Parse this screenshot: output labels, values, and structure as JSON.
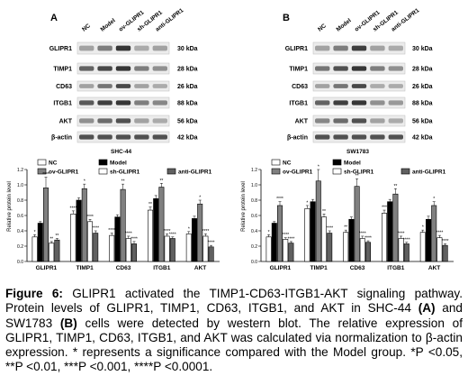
{
  "panels": [
    {
      "letter": "A",
      "cell_line": "SHC-44",
      "lanes": [
        "NC",
        "Model",
        "ov-GLIPR1",
        "sh-GLIPR1",
        "anti-GLIPR1"
      ],
      "proteins": [
        "GLIPR1",
        "TIMP1",
        "CD63",
        "ITGB1",
        "AKT",
        "β-actin"
      ],
      "sizes": [
        "30 kDa",
        "28 kDa",
        "26 kDa",
        "88 kDa",
        "56 kDa",
        "42 kDa"
      ],
      "band_intensity": [
        [
          0.35,
          0.55,
          0.95,
          0.3,
          0.35
        ],
        [
          0.7,
          0.85,
          0.95,
          0.55,
          0.45
        ],
        [
          0.35,
          0.6,
          0.85,
          0.35,
          0.3
        ],
        [
          0.75,
          0.9,
          0.95,
          0.55,
          0.5
        ],
        [
          0.45,
          0.65,
          0.8,
          0.35,
          0.3
        ],
        [
          0.8,
          0.8,
          0.8,
          0.8,
          0.8
        ]
      ]
    },
    {
      "letter": "B",
      "cell_line": "SW1783",
      "lanes": [
        "NC",
        "Model",
        "ov-GLIPR1",
        "sh-GLIPR1",
        "anti-GLIPR1"
      ],
      "proteins": [
        "GLIPR1",
        "TIMP1",
        "CD63",
        "ITGB1",
        "AKT",
        "β-actin"
      ],
      "sizes": [
        "30 kDa",
        "28 kDa",
        "26 kDa",
        "88 kDa",
        "56 kDa",
        "42 kDa"
      ],
      "band_intensity": [
        [
          0.35,
          0.55,
          0.9,
          0.35,
          0.3
        ],
        [
          0.6,
          0.8,
          0.95,
          0.55,
          0.45
        ],
        [
          0.35,
          0.6,
          0.85,
          0.3,
          0.3
        ],
        [
          0.7,
          0.9,
          0.95,
          0.45,
          0.4
        ],
        [
          0.5,
          0.65,
          0.8,
          0.35,
          0.3
        ],
        [
          0.8,
          0.8,
          0.8,
          0.8,
          0.8
        ]
      ]
    }
  ],
  "chart_data": [
    {
      "type": "bar",
      "panel": "SHC-44",
      "categories": [
        "GLIPR1",
        "TIMP1",
        "CD63",
        "ITGB1",
        "AKT"
      ],
      "ylabel": "Relative protein level",
      "ylim": [
        0,
        1.2
      ],
      "yticks": [
        0.0,
        0.2,
        0.4,
        0.6,
        0.8,
        1.0,
        1.2
      ],
      "legend": "top",
      "series": [
        {
          "name": "NC",
          "values": [
            0.32,
            0.62,
            0.34,
            0.67,
            0.36
          ],
          "errors": [
            0.03,
            0.04,
            0.03,
            0.04,
            0.03
          ],
          "stars": [
            "*",
            "****",
            "****",
            "**",
            "*"
          ]
        },
        {
          "name": "Model",
          "values": [
            0.5,
            0.8,
            0.58,
            0.82,
            0.56
          ],
          "errors": [
            0.02,
            0.03,
            0.03,
            0.04,
            0.03
          ],
          "stars": [
            "",
            "",
            "",
            "",
            ""
          ]
        },
        {
          "name": "ov-GLIPR1",
          "values": [
            0.96,
            0.95,
            0.94,
            0.97,
            0.75
          ],
          "errors": [
            0.14,
            0.06,
            0.07,
            0.05,
            0.05
          ],
          "stars": [
            "****",
            "*",
            "**",
            "**",
            "*"
          ]
        },
        {
          "name": "sh-GLIPR1",
          "values": [
            0.24,
            0.52,
            0.3,
            0.33,
            0.33
          ],
          "errors": [
            0.02,
            0.03,
            0.03,
            0.03,
            0.03
          ],
          "stars": [
            "**",
            "****",
            "****",
            "****",
            "****"
          ]
        },
        {
          "name": "anti-GLIPR1",
          "values": [
            0.28,
            0.37,
            0.23,
            0.3,
            0.19
          ],
          "errors": [
            0.02,
            0.03,
            0.03,
            0.02,
            0.02
          ],
          "stars": [
            "**",
            "****",
            "****",
            "****",
            "****"
          ]
        }
      ]
    },
    {
      "type": "bar",
      "panel": "SW1783",
      "categories": [
        "GLIPR1",
        "TIMP1",
        "CD63",
        "ITGB1",
        "AKT"
      ],
      "ylabel": "Relative protein level",
      "ylim": [
        0,
        1.2
      ],
      "yticks": [
        0.0,
        0.2,
        0.4,
        0.6,
        0.8,
        1.0,
        1.2
      ],
      "legend": "top",
      "series": [
        {
          "name": "NC",
          "values": [
            0.32,
            0.69,
            0.38,
            0.63,
            0.38
          ],
          "errors": [
            0.03,
            0.04,
            0.03,
            0.04,
            0.03
          ],
          "stars": [
            "*",
            "*",
            "**",
            "***",
            "*"
          ]
        },
        {
          "name": "Model",
          "values": [
            0.5,
            0.78,
            0.55,
            0.78,
            0.55
          ],
          "errors": [
            0.02,
            0.03,
            0.03,
            0.03,
            0.04
          ],
          "stars": [
            "",
            "",
            "",
            "",
            ""
          ]
        },
        {
          "name": "ov-GLIPR1",
          "values": [
            0.73,
            1.05,
            0.98,
            0.88,
            0.73
          ],
          "errors": [
            0.05,
            0.15,
            0.1,
            0.07,
            0.05
          ],
          "stars": [
            "****",
            "*",
            "**",
            "**",
            "*"
          ]
        },
        {
          "name": "sh-GLIPR1",
          "values": [
            0.29,
            0.58,
            0.3,
            0.3,
            0.31
          ],
          "errors": [
            0.02,
            0.04,
            0.03,
            0.03,
            0.03
          ],
          "stars": [
            "****",
            "**",
            "****",
            "****",
            "****"
          ]
        },
        {
          "name": "anti-GLIPR1",
          "values": [
            0.24,
            0.37,
            0.25,
            0.23,
            0.21
          ],
          "errors": [
            0.02,
            0.03,
            0.02,
            0.02,
            0.02
          ],
          "stars": [
            "****",
            "****",
            "****",
            "****",
            "****"
          ]
        }
      ]
    }
  ],
  "caption": {
    "label": "Figure 6:",
    "line1": " GLIPR1 activated the TIMP1-CD63-ITGB1-AKT signaling pathway. Protein levels of GLIPR1, TIMP1, CD63, ITGB1, and AKT in SHC-44 ",
    "a": "(A)",
    "mid": " and SW1783 ",
    "b": "(B)",
    "rest": " cells were detected by western blot. The relative expression of GLIPR1, TIMP1, CD63, ITGB1, and AKT was calculated via normalization to β-actin expression. * represents a significance compared with the Model group. *P <0.05, **P <0.01, ***P <0.001, ****P <0.0001."
  }
}
